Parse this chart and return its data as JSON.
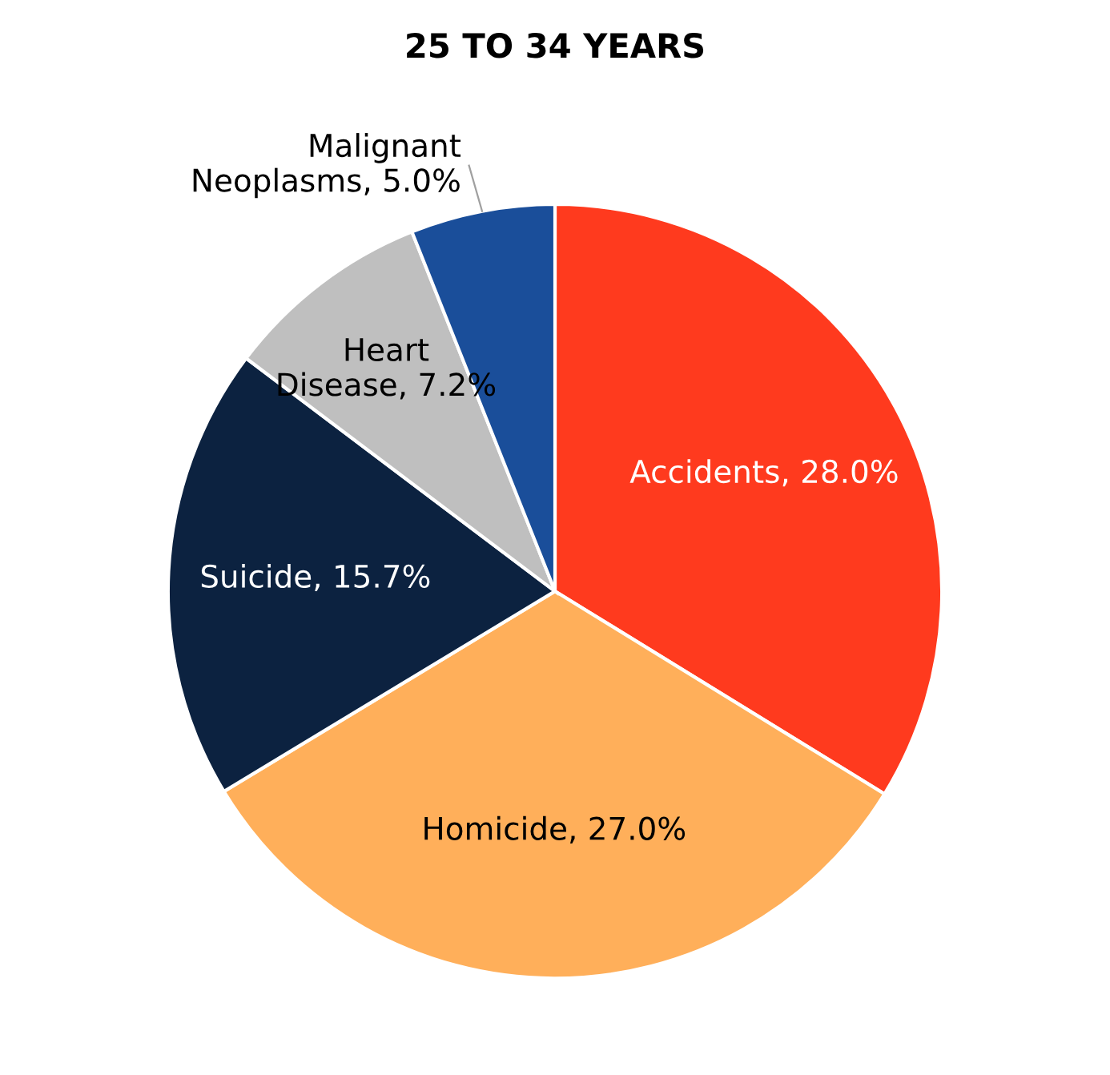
{
  "chart_data": {
    "type": "pie",
    "title": "25 TO 34 YEARS",
    "categories": [
      "Accidents",
      "Homicide",
      "Suicide",
      "Heart Disease",
      "Malignant Neoplasms"
    ],
    "values": [
      28.0,
      27.0,
      15.7,
      7.2,
      5.0
    ],
    "colors": [
      "#ff3a1e",
      "#ffaf5a",
      "#0c2240",
      "#bfbfbf",
      "#1a4e9a"
    ],
    "value_labels": [
      "28.0%",
      "27.0%",
      "15.7%",
      "7.2%",
      "5.0%"
    ]
  }
}
